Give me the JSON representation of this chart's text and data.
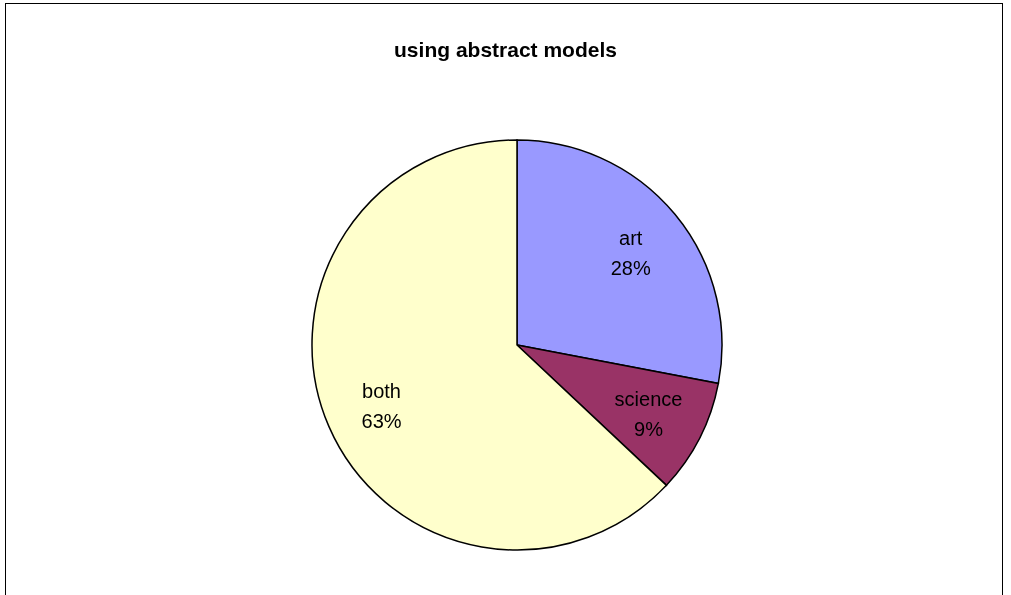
{
  "chart_data": {
    "type": "pie",
    "title": "using abstract models",
    "categories": [
      "art",
      "science",
      "both"
    ],
    "values": [
      28,
      9,
      63
    ],
    "colors": [
      "#9999ff",
      "#993366",
      "#ffffcc"
    ],
    "value_labels": [
      "28%",
      "9%",
      "63%"
    ],
    "legend": false
  }
}
